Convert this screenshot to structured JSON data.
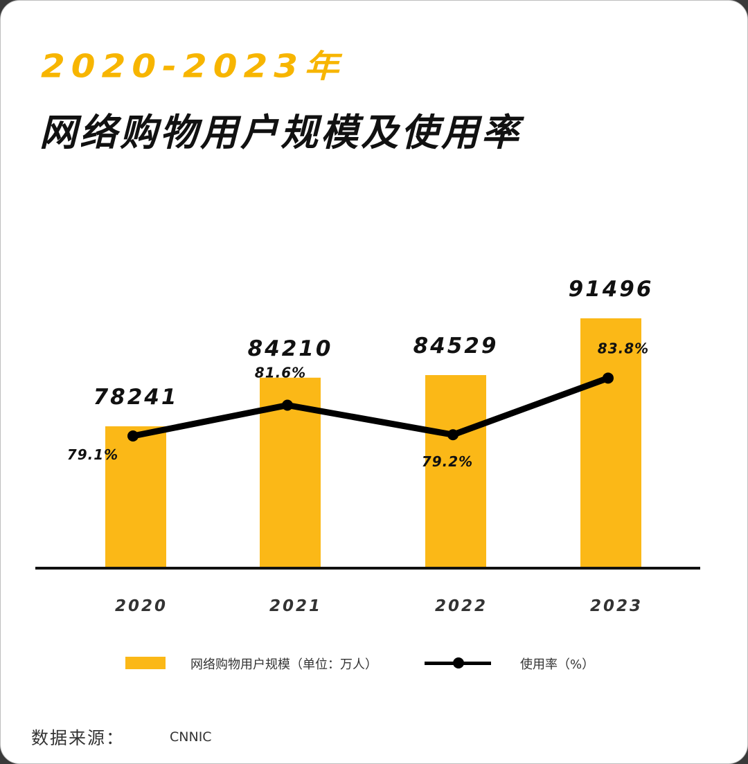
{
  "title": {
    "line1": "2020-2023年",
    "line2": "网络购物用户规模及使用率"
  },
  "chart_data": {
    "type": "bar",
    "categories": [
      "2020",
      "2021",
      "2022",
      "2023"
    ],
    "series": [
      {
        "name": "网络购物用户规模（单位：万人）",
        "type": "bar",
        "values": [
          78241,
          84210,
          84529,
          91496
        ],
        "labels": [
          "78241",
          "84210",
          "84529",
          "91496"
        ]
      },
      {
        "name": "使用率（%）",
        "type": "line",
        "values": [
          79.1,
          81.6,
          79.2,
          83.8
        ],
        "labels": [
          "79.1%",
          "81.6%",
          "79.2%",
          "83.8%"
        ]
      }
    ],
    "grid": false,
    "legend_position": "bottom"
  },
  "colors": {
    "bar": "#fbb817",
    "line": "#000000",
    "title_accent": "#f7b500"
  },
  "legend": {
    "bar_label": "网络购物用户规模（单位：万人）",
    "line_label": "使用率（%）"
  },
  "source": {
    "label": "数据来源：",
    "value": "CNNIC"
  }
}
